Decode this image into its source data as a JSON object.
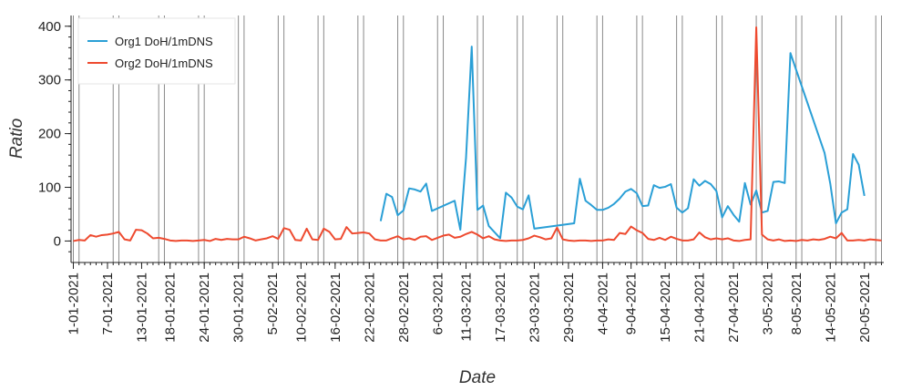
{
  "chart_data": {
    "type": "line",
    "title": "",
    "xlabel": "Date",
    "ylabel": "Ratio",
    "ylim": [
      -40,
      420
    ],
    "xlim": [
      "2021-01-01",
      "2021-05-23"
    ],
    "legend_position": "top-left",
    "grid": {
      "x": "vertical lines at dates",
      "y": false
    },
    "x_ticks": [
      "1-01-2021",
      "7-01-2021",
      "13-01-2021",
      "18-01-2021",
      "24-01-2021",
      "30-01-2021",
      "5-02-2021",
      "10-02-2021",
      "16-02-2021",
      "22-02-2021",
      "28-02-2021",
      "6-03-2021",
      "11-03-2021",
      "17-03-2021",
      "23-03-2021",
      "29-03-2021",
      "4-04-2021",
      "9-04-2021",
      "15-04-2021",
      "21-04-2021",
      "27-04-2021",
      "3-05-2021",
      "8-05-2021",
      "14-05-2021",
      "20-05-2021"
    ],
    "y_ticks": [
      0,
      100,
      200,
      300,
      400
    ],
    "vlines": [
      "2021-01-01",
      "2021-01-02",
      "2021-01-08",
      "2021-01-09",
      "2021-01-16",
      "2021-01-17",
      "2021-01-23",
      "2021-01-24",
      "2021-01-30",
      "2021-01-31",
      "2021-02-06",
      "2021-02-07",
      "2021-02-13",
      "2021-02-14",
      "2021-02-20",
      "2021-02-21",
      "2021-02-27",
      "2021-02-28",
      "2021-03-06",
      "2021-03-07",
      "2021-03-13",
      "2021-03-14",
      "2021-03-20",
      "2021-03-21",
      "2021-03-27",
      "2021-03-28",
      "2021-04-03",
      "2021-04-04",
      "2021-04-10",
      "2021-04-11",
      "2021-04-17",
      "2021-04-18",
      "2021-04-24",
      "2021-04-25",
      "2021-05-01",
      "2021-05-02",
      "2021-05-08",
      "2021-05-09",
      "2021-05-15",
      "2021-05-16",
      "2021-05-22",
      "2021-05-23"
    ],
    "series": [
      {
        "name": "Org1 DoH/1mDNS",
        "color": "#2a9fd6",
        "points": [
          [
            "2021-02-24",
            37
          ],
          [
            "2021-02-25",
            88
          ],
          [
            "2021-02-26",
            82
          ],
          [
            "2021-02-27",
            48
          ],
          [
            "2021-02-28",
            57
          ],
          [
            "2021-03-01",
            98
          ],
          [
            "2021-03-02",
            96
          ],
          [
            "2021-03-03",
            92
          ],
          [
            "2021-03-04",
            107
          ],
          [
            "2021-03-05",
            56
          ],
          [
            "2021-03-09",
            75
          ],
          [
            "2021-03-10",
            21
          ],
          [
            "2021-03-11",
            155
          ],
          [
            "2021-03-12",
            362
          ],
          [
            "2021-03-13",
            58
          ],
          [
            "2021-03-14",
            66
          ],
          [
            "2021-03-15",
            28
          ],
          [
            "2021-03-17",
            5
          ],
          [
            "2021-03-18",
            90
          ],
          [
            "2021-03-19",
            81
          ],
          [
            "2021-03-20",
            64
          ],
          [
            "2021-03-21",
            59
          ],
          [
            "2021-03-22",
            85
          ],
          [
            "2021-03-23",
            23
          ],
          [
            "2021-03-30",
            33
          ],
          [
            "2021-03-31",
            116
          ],
          [
            "2021-04-01",
            75
          ],
          [
            "2021-04-02",
            67
          ],
          [
            "2021-04-03",
            58
          ],
          [
            "2021-04-04",
            58
          ],
          [
            "2021-04-05",
            62
          ],
          [
            "2021-04-06",
            69
          ],
          [
            "2021-04-07",
            79
          ],
          [
            "2021-04-08",
            92
          ],
          [
            "2021-04-09",
            97
          ],
          [
            "2021-04-10",
            89
          ],
          [
            "2021-04-11",
            65
          ],
          [
            "2021-04-12",
            66
          ],
          [
            "2021-04-13",
            104
          ],
          [
            "2021-04-14",
            99
          ],
          [
            "2021-04-15",
            101
          ],
          [
            "2021-04-16",
            106
          ],
          [
            "2021-04-17",
            62
          ],
          [
            "2021-04-18",
            53
          ],
          [
            "2021-04-19",
            61
          ],
          [
            "2021-04-20",
            115
          ],
          [
            "2021-04-21",
            103
          ],
          [
            "2021-04-22",
            112
          ],
          [
            "2021-04-23",
            106
          ],
          [
            "2021-04-24",
            93
          ],
          [
            "2021-04-25",
            44
          ],
          [
            "2021-04-26",
            65
          ],
          [
            "2021-04-27",
            49
          ],
          [
            "2021-04-28",
            36
          ],
          [
            "2021-04-29",
            108
          ],
          [
            "2021-04-30",
            68
          ],
          [
            "2021-05-01",
            94
          ],
          [
            "2021-05-02",
            53
          ],
          [
            "2021-05-03",
            56
          ],
          [
            "2021-05-04",
            110
          ],
          [
            "2021-05-05",
            111
          ],
          [
            "2021-05-06",
            108
          ],
          [
            "2021-05-07",
            350
          ],
          [
            "2021-05-13",
            164
          ],
          [
            "2021-05-14",
            107
          ],
          [
            "2021-05-15",
            33
          ],
          [
            "2021-05-16",
            53
          ],
          [
            "2021-05-17",
            59
          ],
          [
            "2021-05-18",
            162
          ],
          [
            "2021-05-19",
            142
          ],
          [
            "2021-05-20",
            84
          ]
        ]
      },
      {
        "name": "Org2 DoH/1mDNS",
        "color": "#ee4a2f",
        "points": [
          [
            "2021-01-01",
            0
          ],
          [
            "2021-01-02",
            2
          ],
          [
            "2021-01-03",
            1
          ],
          [
            "2021-01-04",
            11
          ],
          [
            "2021-01-05",
            8
          ],
          [
            "2021-01-06",
            11
          ],
          [
            "2021-01-07",
            12
          ],
          [
            "2021-01-08",
            14
          ],
          [
            "2021-01-09",
            17
          ],
          [
            "2021-01-10",
            3
          ],
          [
            "2021-01-11",
            1
          ],
          [
            "2021-01-12",
            21
          ],
          [
            "2021-01-13",
            20
          ],
          [
            "2021-01-14",
            14
          ],
          [
            "2021-01-15",
            5
          ],
          [
            "2021-01-16",
            6
          ],
          [
            "2021-01-17",
            4
          ],
          [
            "2021-01-18",
            1
          ],
          [
            "2021-01-19",
            0
          ],
          [
            "2021-01-20",
            1
          ],
          [
            "2021-01-21",
            1
          ],
          [
            "2021-01-22",
            0
          ],
          [
            "2021-01-23",
            1
          ],
          [
            "2021-01-24",
            2
          ],
          [
            "2021-01-25",
            0
          ],
          [
            "2021-01-26",
            4
          ],
          [
            "2021-01-27",
            2
          ],
          [
            "2021-01-28",
            4
          ],
          [
            "2021-01-29",
            3
          ],
          [
            "2021-01-30",
            3
          ],
          [
            "2021-01-31",
            8
          ],
          [
            "2021-02-01",
            5
          ],
          [
            "2021-02-02",
            1
          ],
          [
            "2021-02-03",
            3
          ],
          [
            "2021-02-04",
            5
          ],
          [
            "2021-02-05",
            9
          ],
          [
            "2021-02-06",
            4
          ],
          [
            "2021-02-07",
            24
          ],
          [
            "2021-02-08",
            21
          ],
          [
            "2021-02-09",
            2
          ],
          [
            "2021-02-10",
            1
          ],
          [
            "2021-02-11",
            23
          ],
          [
            "2021-02-12",
            3
          ],
          [
            "2021-02-13",
            2
          ],
          [
            "2021-02-14",
            23
          ],
          [
            "2021-02-15",
            17
          ],
          [
            "2021-02-16",
            3
          ],
          [
            "2021-02-17",
            4
          ],
          [
            "2021-02-18",
            26
          ],
          [
            "2021-02-19",
            14
          ],
          [
            "2021-02-20",
            15
          ],
          [
            "2021-02-21",
            16
          ],
          [
            "2021-02-22",
            14
          ],
          [
            "2021-02-23",
            3
          ],
          [
            "2021-02-24",
            1
          ],
          [
            "2021-02-25",
            1
          ],
          [
            "2021-02-26",
            5
          ],
          [
            "2021-02-27",
            9
          ],
          [
            "2021-02-28",
            3
          ],
          [
            "2021-03-01",
            5
          ],
          [
            "2021-03-02",
            2
          ],
          [
            "2021-03-03",
            8
          ],
          [
            "2021-03-04",
            9
          ],
          [
            "2021-03-05",
            2
          ],
          [
            "2021-03-06",
            6
          ],
          [
            "2021-03-07",
            10
          ],
          [
            "2021-03-08",
            12
          ],
          [
            "2021-03-09",
            6
          ],
          [
            "2021-03-10",
            8
          ],
          [
            "2021-03-11",
            13
          ],
          [
            "2021-03-12",
            17
          ],
          [
            "2021-03-13",
            12
          ],
          [
            "2021-03-14",
            5
          ],
          [
            "2021-03-15",
            9
          ],
          [
            "2021-03-16",
            3
          ],
          [
            "2021-03-17",
            1
          ],
          [
            "2021-03-18",
            0
          ],
          [
            "2021-03-19",
            1
          ],
          [
            "2021-03-20",
            1
          ],
          [
            "2021-03-21",
            2
          ],
          [
            "2021-03-22",
            5
          ],
          [
            "2021-03-23",
            10
          ],
          [
            "2021-03-24",
            7
          ],
          [
            "2021-03-25",
            3
          ],
          [
            "2021-03-26",
            5
          ],
          [
            "2021-03-27",
            25
          ],
          [
            "2021-03-28",
            3
          ],
          [
            "2021-03-29",
            1
          ],
          [
            "2021-03-30",
            0
          ],
          [
            "2021-03-31",
            1
          ],
          [
            "2021-04-01",
            1
          ],
          [
            "2021-04-02",
            0
          ],
          [
            "2021-04-03",
            1
          ],
          [
            "2021-04-04",
            1
          ],
          [
            "2021-04-05",
            3
          ],
          [
            "2021-04-06",
            2
          ],
          [
            "2021-04-07",
            15
          ],
          [
            "2021-04-08",
            13
          ],
          [
            "2021-04-09",
            27
          ],
          [
            "2021-04-10",
            20
          ],
          [
            "2021-04-11",
            15
          ],
          [
            "2021-04-12",
            4
          ],
          [
            "2021-04-13",
            2
          ],
          [
            "2021-04-14",
            6
          ],
          [
            "2021-04-15",
            2
          ],
          [
            "2021-04-16",
            8
          ],
          [
            "2021-04-17",
            4
          ],
          [
            "2021-04-18",
            1
          ],
          [
            "2021-04-19",
            1
          ],
          [
            "2021-04-20",
            3
          ],
          [
            "2021-04-21",
            16
          ],
          [
            "2021-04-22",
            7
          ],
          [
            "2021-04-23",
            3
          ],
          [
            "2021-04-24",
            5
          ],
          [
            "2021-04-25",
            3
          ],
          [
            "2021-04-26",
            5
          ],
          [
            "2021-04-27",
            1
          ],
          [
            "2021-04-28",
            0
          ],
          [
            "2021-04-29",
            2
          ],
          [
            "2021-04-30",
            3
          ],
          [
            "2021-05-01",
            398
          ],
          [
            "2021-05-02",
            12
          ],
          [
            "2021-05-03",
            3
          ],
          [
            "2021-05-04",
            1
          ],
          [
            "2021-05-05",
            3
          ],
          [
            "2021-05-06",
            0
          ],
          [
            "2021-05-07",
            1
          ],
          [
            "2021-05-08",
            0
          ],
          [
            "2021-05-09",
            2
          ],
          [
            "2021-05-10",
            1
          ],
          [
            "2021-05-11",
            3
          ],
          [
            "2021-05-12",
            2
          ],
          [
            "2021-05-13",
            4
          ],
          [
            "2021-05-14",
            8
          ],
          [
            "2021-05-15",
            5
          ],
          [
            "2021-05-16",
            15
          ],
          [
            "2021-05-17",
            1
          ],
          [
            "2021-05-18",
            1
          ],
          [
            "2021-05-19",
            2
          ],
          [
            "2021-05-20",
            1
          ],
          [
            "2021-05-21",
            3
          ],
          [
            "2021-05-22",
            2
          ],
          [
            "2021-05-23",
            1
          ]
        ]
      }
    ]
  }
}
